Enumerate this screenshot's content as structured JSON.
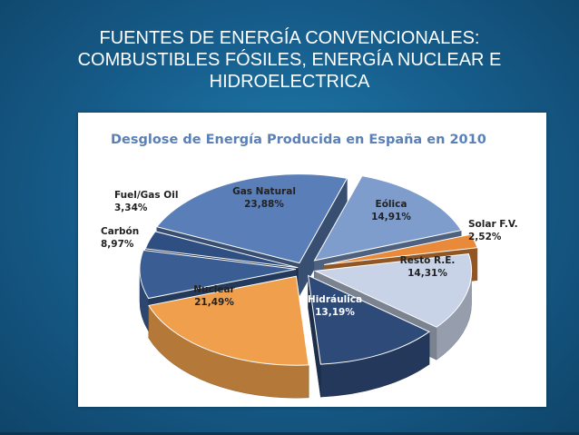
{
  "slide": {
    "title_lines": [
      "FUENTES DE ENERGÍA CONVENCIONALES:",
      "COMBUSTIBLES FÓSILES, ENERGÍA NUCLEAR E",
      "HIDROELECTRICA"
    ]
  },
  "chart_data": {
    "type": "pie",
    "title": "Desglose de Energía Producida  en España  en 2010",
    "slices": [
      {
        "name": "Gas Natural",
        "value": 23.88,
        "value_label": "23,88%",
        "color": "#5a7fb8"
      },
      {
        "name": "Eólica",
        "value": 14.91,
        "value_label": "14,91%",
        "color": "#7e9ccc"
      },
      {
        "name": "Solar F.V.",
        "value": 2.52,
        "value_label": "2,52%",
        "color": "#e88a3a"
      },
      {
        "name": "Resto R.E.",
        "value": 14.31,
        "value_label": "14,31%",
        "color": "#c8d3e8"
      },
      {
        "name": "Hidráulica",
        "value": 13.19,
        "value_label": "13,19%",
        "color": "#2e4a78"
      },
      {
        "name": "Nuclear",
        "value": 21.49,
        "value_label": "21,49%",
        "color": "#f0a04c"
      },
      {
        "name": "Carbón",
        "value": 8.97,
        "value_label": "8,97%",
        "color": "#3a5d94"
      },
      {
        "name": "Fuel/Gas Oil",
        "value": 3.34,
        "value_label": "3,34%",
        "color": "#2f4f82"
      }
    ]
  }
}
